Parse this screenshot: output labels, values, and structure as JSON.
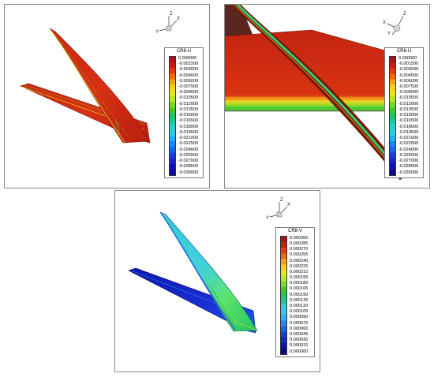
{
  "panels": [
    {
      "legend_title": "CR8-U",
      "ticks": [
        "0.000000",
        "-0.001500",
        "-0.003000",
        "-0.004500",
        "-0.006000",
        "-0.007500",
        "-0.009000",
        "-0.010500",
        "-0.012000",
        "-0.013500",
        "-0.015000",
        "-0.016500",
        "-0.018000",
        "-0.019500",
        "-0.021000",
        "-0.022500",
        "-0.024000",
        "-0.025500",
        "-0.027000",
        "-0.028500",
        "-0.030000"
      ],
      "axes": {
        "z": "Z",
        "x": "X",
        "y": "Y"
      }
    },
    {
      "legend_title": "CR8-U",
      "ticks": [
        "0.000000",
        "-0.001500",
        "-0.003000",
        "-0.004500",
        "-0.006000",
        "-0.007500",
        "-0.009000",
        "-0.010500",
        "-0.012000",
        "-0.013500",
        "-0.015000",
        "-0.016500",
        "-0.018000",
        "-0.019500",
        "-0.021000",
        "-0.022500",
        "-0.024000",
        "-0.025500",
        "-0.027000",
        "-0.028500",
        "-0.030000"
      ],
      "axes": {
        "z": "Z",
        "x": "X",
        "y": "Y"
      }
    },
    {
      "legend_title": "CR8-V",
      "ticks": [
        "0.000300",
        "0.000285",
        "0.000270",
        "0.000255",
        "0.000240",
        "0.000225",
        "0.000210",
        "0.000195",
        "0.000180",
        "0.000165",
        "0.000150",
        "0.000135",
        "0.000120",
        "0.000105",
        "0.000090",
        "0.000075",
        "0.000060",
        "0.000045",
        "0.000030",
        "0.000015",
        "0.000000"
      ],
      "axes": {
        "z": "Z",
        "x": "X",
        "y": "Y"
      }
    }
  ],
  "colors": {
    "scale": [
      "#a01818",
      "#c81e10",
      "#e23a0c",
      "#f06a0a",
      "#f7a11a",
      "#f7d11e",
      "#e6e81e",
      "#b8e628",
      "#7cd92a",
      "#3ec932",
      "#24c262",
      "#22c79a",
      "#28cfcc",
      "#2fc8ee",
      "#2aaef2",
      "#2087f0",
      "#1a64e8",
      "#1642d8",
      "#1426c8",
      "#1010b0",
      "#0a0a90"
    ],
    "surface_red": "#d12b12",
    "surface_blue": "#1a2fd6",
    "surface_cyan": "#40d0e0",
    "surface_green": "#5ee36a"
  }
}
